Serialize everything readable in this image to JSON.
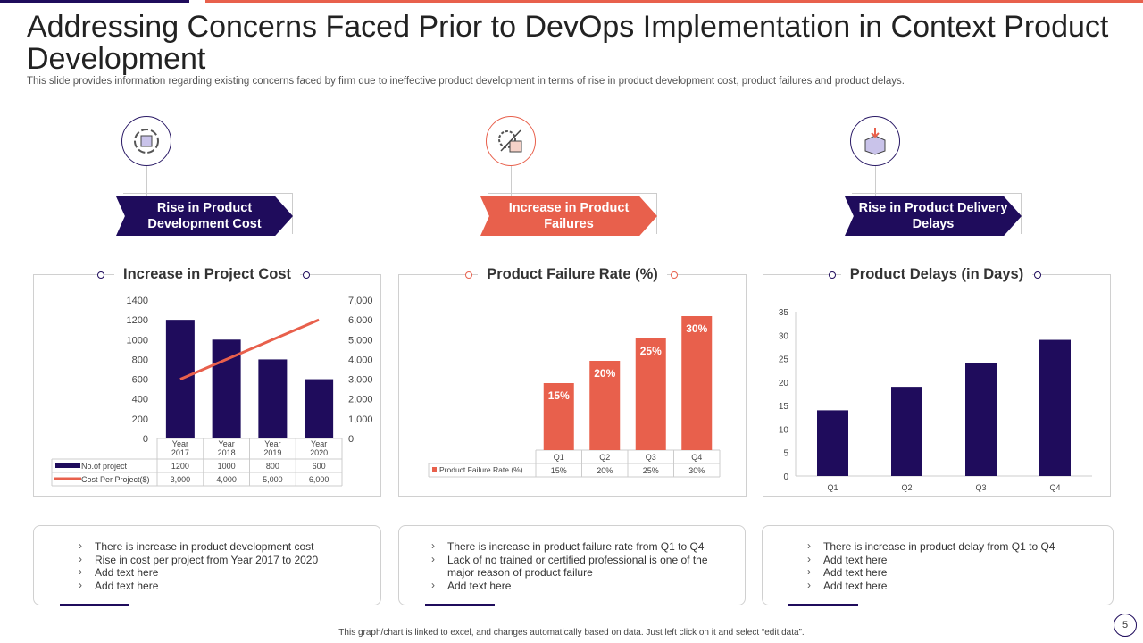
{
  "title": "Addressing Concerns Faced Prior to DevOps Implementation in Context Product Development",
  "subtitle": "This slide provides information regarding existing concerns faced by firm due to ineffective product development in terms of rise in product development cost, product failures and product delays.",
  "colors": {
    "navy": "#1f0c5c",
    "coral": "#e8604c"
  },
  "columns": [
    {
      "icon": "product-cycle-icon",
      "banner": "Rise in Product Development Cost",
      "chart_title": "Increase in Project Cost",
      "bullets": [
        "There is increase in product development cost",
        "Rise in cost per project from Year 2017 to 2020",
        "Add text here",
        "Add text here"
      ]
    },
    {
      "icon": "gear-growth-box-icon",
      "banner": "Increase in Product Failures",
      "chart_title": "Product Failure Rate (%)",
      "bullets": [
        "There is increase in product failure rate from Q1 to Q4",
        "Lack of no trained or certified professional is one of the major reason of product failure",
        "Add text here"
      ]
    },
    {
      "icon": "delivery-box-icon",
      "banner": "Rise in Product Delivery Delays",
      "chart_title": "Product Delays (in Days)",
      "bullets": [
        "There is increase in product delay from Q1 to Q4",
        "Add text here",
        "Add text here",
        "Add text here"
      ]
    }
  ],
  "chart_data": [
    {
      "type": "bar+line",
      "title": "Increase in Project Cost",
      "categories": [
        "Year 2017",
        "Year 2018",
        "Year 2019",
        "Year 2020"
      ],
      "series": [
        {
          "name": "No.of project",
          "type": "bar",
          "axis": "left",
          "values": [
            1200,
            1000,
            800,
            600
          ],
          "labels": [
            "1200",
            "1000",
            "800",
            "600"
          ]
        },
        {
          "name": "Cost Per Project($)",
          "type": "line",
          "axis": "right",
          "values": [
            3000,
            4000,
            5000,
            6000
          ],
          "labels": [
            "3,000",
            "4,000",
            "5,000",
            "6,000"
          ]
        }
      ],
      "ylim": [
        0,
        1400
      ],
      "yticks": [
        "0",
        "200",
        "400",
        "600",
        "800",
        "1000",
        "1200",
        "1400"
      ],
      "y2lim": [
        0,
        7000
      ],
      "y2ticks": [
        "0",
        "1,000",
        "2,000",
        "3,000",
        "4,000",
        "5,000",
        "6,000",
        "7,000"
      ],
      "data_table": true
    },
    {
      "type": "bar",
      "title": "Product Failure Rate (%)",
      "categories": [
        "Q1",
        "Q2",
        "Q3",
        "Q4"
      ],
      "series": [
        {
          "name": "Product Failure Rate (%)",
          "values": [
            15,
            20,
            25,
            30
          ],
          "labels": [
            "15%",
            "20%",
            "25%",
            "30%"
          ]
        }
      ],
      "ylim": [
        0,
        30
      ],
      "data_table": true
    },
    {
      "type": "bar",
      "title": "Product Delays (in Days)",
      "categories": [
        "Q1",
        "Q2",
        "Q3",
        "Q4"
      ],
      "series": [
        {
          "values": [
            14,
            19,
            24,
            29
          ]
        }
      ],
      "ylim": [
        0,
        35
      ],
      "yticks": [
        "0",
        "5",
        "10",
        "15",
        "20",
        "25",
        "30",
        "35"
      ]
    }
  ],
  "footer": "This graph/chart is linked to excel, and changes automatically based on data. Just left click on it and select “edit data”.",
  "page_number": "5"
}
